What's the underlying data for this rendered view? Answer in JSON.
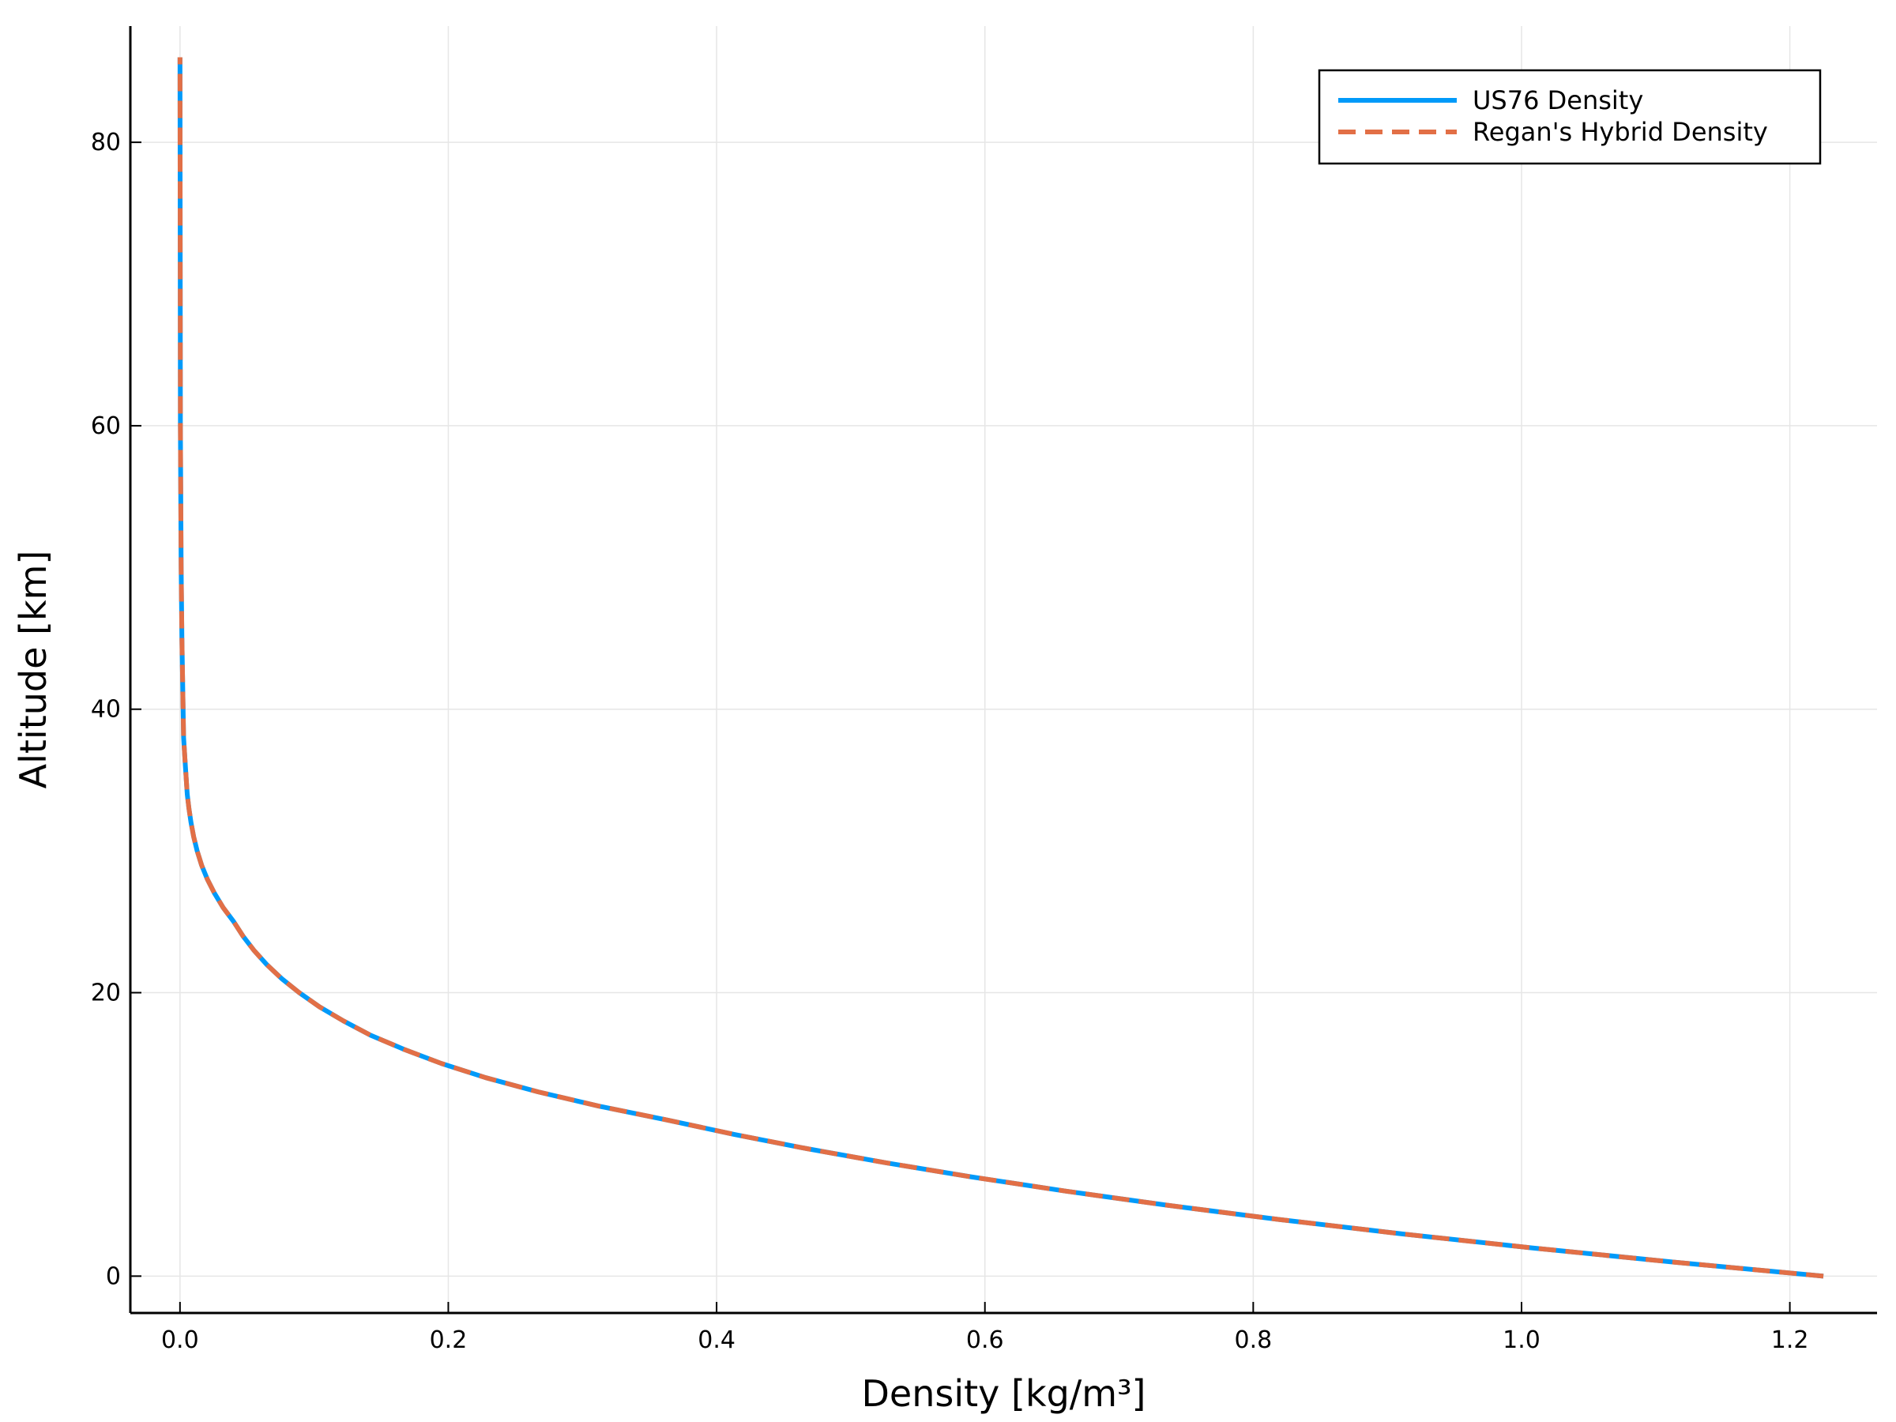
{
  "chart_data": {
    "type": "line",
    "title": "",
    "xlabel": "Density [kg/m³]",
    "ylabel": "Altitude [km]",
    "xlim": [
      -0.037,
      1.265
    ],
    "ylim": [
      -2.6,
      88.2
    ],
    "xticks": [
      0.0,
      0.2,
      0.4,
      0.6,
      0.8,
      1.0,
      1.2
    ],
    "xtick_labels": [
      "0.0",
      "0.2",
      "0.4",
      "0.6",
      "0.8",
      "1.0",
      "1.2"
    ],
    "yticks": [
      0,
      20,
      40,
      60,
      80
    ],
    "ytick_labels": [
      "0",
      "20",
      "40",
      "60",
      "80"
    ],
    "grid": true,
    "legend_position": "top-right",
    "series": [
      {
        "name": "US76 Density",
        "color": "#009af9",
        "dash": "solid",
        "x": [
          1.225,
          1.112,
          1.007,
          0.909,
          0.819,
          0.736,
          0.66,
          0.59,
          0.526,
          0.467,
          0.413,
          0.364,
          0.312,
          0.267,
          0.228,
          0.195,
          0.167,
          0.142,
          0.122,
          0.104,
          0.0889,
          0.0757,
          0.0645,
          0.055,
          0.0469,
          0.0401,
          0.0322,
          0.0258,
          0.0204,
          0.0161,
          0.0128,
          0.0102,
          0.00822,
          0.00666,
          0.00541,
          0.00401,
          0.00269,
          0.00143,
          0.000857,
          0.000307,
          6.6e-06
        ],
        "y": [
          0,
          1,
          2,
          3,
          4,
          5,
          6,
          7,
          8,
          9,
          10,
          11,
          12,
          13,
          14,
          15,
          16,
          17,
          18,
          19,
          20,
          21,
          22,
          23,
          24,
          25,
          26,
          27,
          28,
          29,
          30,
          31,
          32,
          33,
          34,
          36,
          38,
          45,
          50,
          60,
          86
        ]
      },
      {
        "name": "Regan's Hybrid Density",
        "color": "#e26f46",
        "dash": "dashed",
        "x": [
          1.225,
          1.112,
          1.007,
          0.909,
          0.819,
          0.736,
          0.66,
          0.59,
          0.526,
          0.467,
          0.413,
          0.364,
          0.312,
          0.267,
          0.228,
          0.195,
          0.167,
          0.142,
          0.122,
          0.104,
          0.0889,
          0.0757,
          0.0645,
          0.055,
          0.0469,
          0.0401,
          0.0322,
          0.0258,
          0.0204,
          0.0161,
          0.0128,
          0.0102,
          0.00822,
          0.00666,
          0.00541,
          0.00401,
          0.00269,
          0.00143,
          0.000857,
          0.000307,
          6.6e-06
        ],
        "y": [
          0,
          1,
          2,
          3,
          4,
          5,
          6,
          7,
          8,
          9,
          10,
          11,
          12,
          13,
          14,
          15,
          16,
          17,
          18,
          19,
          20,
          21,
          22,
          23,
          24,
          25,
          26,
          27,
          28,
          29,
          30,
          31,
          32,
          33,
          34,
          36,
          38,
          45,
          50,
          60,
          86
        ]
      }
    ]
  }
}
